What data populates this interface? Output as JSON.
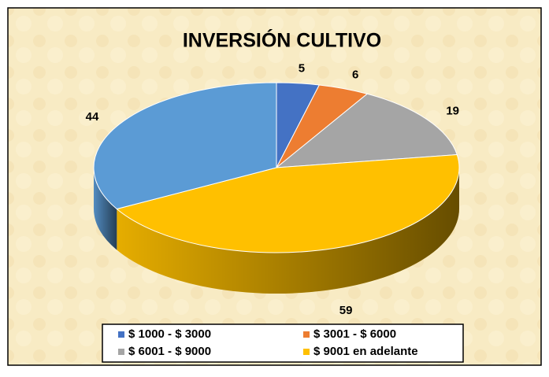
{
  "chart_data": {
    "type": "pie",
    "title": "INVERSIÓN CULTIVO",
    "categories": [
      "$ 1000 - $ 3000",
      "$ 3001 - $ 6000",
      "$ 6001 - $ 9000",
      "$ 9001 en adelante",
      null
    ],
    "values": [
      5,
      6,
      19,
      59,
      44
    ],
    "colors": [
      "#4472c4",
      "#ed7d31",
      "#a5a5a5",
      "#ffc000",
      "#5b9bd5"
    ],
    "legend": "bottom"
  }
}
